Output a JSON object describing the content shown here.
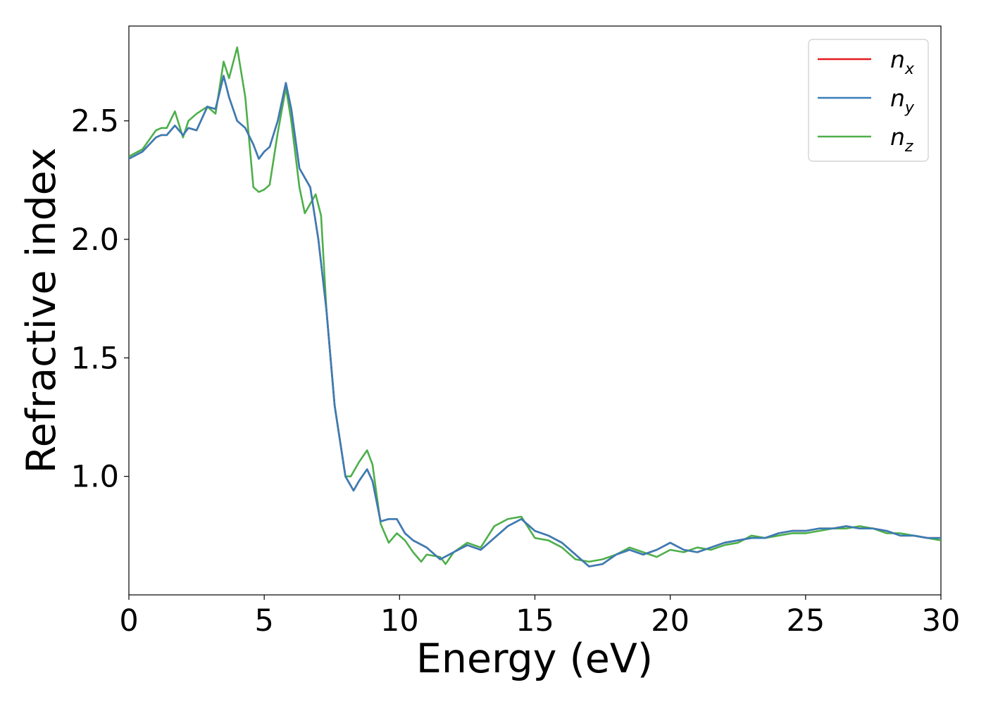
{
  "chart_data": {
    "type": "line",
    "xlabel": "Energy (eV)",
    "ylabel": "Refractive index",
    "xlim": [
      0,
      30
    ],
    "ylim": [
      0.5,
      2.9
    ],
    "xticks": [
      0,
      5,
      10,
      15,
      20,
      25,
      30
    ],
    "xtick_labels": [
      "0",
      "5",
      "10",
      "15",
      "20",
      "25",
      "30"
    ],
    "yticks": [
      1.0,
      1.5,
      2.0,
      2.5
    ],
    "ytick_labels": [
      "1.0",
      "1.5",
      "2.0",
      "2.5"
    ],
    "grid": false,
    "legend_position": "top-right",
    "series": [
      {
        "name": "n_x",
        "name_main": "n",
        "name_sub": "x",
        "color": "#e41a1c",
        "x": [
          0,
          0.5,
          1.0,
          1.2,
          1.4,
          1.7,
          2.0,
          2.2,
          2.5,
          2.9,
          3.2,
          3.5,
          3.7,
          4.0,
          4.3,
          4.6,
          4.8,
          5.0,
          5.2,
          5.5,
          5.8,
          6.0,
          6.3,
          6.7,
          7.0,
          7.3,
          7.6,
          8.0,
          8.3,
          8.5,
          8.8,
          9.0,
          9.3,
          9.6,
          9.9,
          10.2,
          10.5,
          11.0,
          11.5,
          12.0,
          12.5,
          13.0,
          13.5,
          14.0,
          14.5,
          15.0,
          15.5,
          16.0,
          16.5,
          17.0,
          17.5,
          18.0,
          18.5,
          19.0,
          19.5,
          20.0,
          20.5,
          21.0,
          21.5,
          22.0,
          22.5,
          23.0,
          23.5,
          24.0,
          24.5,
          25.0,
          25.5,
          26.0,
          26.5,
          27.0,
          27.5,
          28.0,
          28.5,
          29.0,
          29.5,
          30.0
        ],
        "y": [
          2.34,
          2.37,
          2.43,
          2.44,
          2.44,
          2.48,
          2.44,
          2.47,
          2.46,
          2.56,
          2.55,
          2.69,
          2.6,
          2.5,
          2.47,
          2.4,
          2.34,
          2.37,
          2.39,
          2.5,
          2.66,
          2.55,
          2.3,
          2.22,
          2.0,
          1.7,
          1.3,
          1.0,
          0.94,
          0.98,
          1.03,
          0.98,
          0.81,
          0.82,
          0.82,
          0.76,
          0.73,
          0.7,
          0.65,
          0.68,
          0.71,
          0.69,
          0.74,
          0.79,
          0.82,
          0.77,
          0.75,
          0.72,
          0.67,
          0.62,
          0.63,
          0.67,
          0.69,
          0.67,
          0.69,
          0.72,
          0.69,
          0.68,
          0.7,
          0.72,
          0.73,
          0.74,
          0.74,
          0.76,
          0.77,
          0.77,
          0.78,
          0.78,
          0.79,
          0.78,
          0.78,
          0.77,
          0.75,
          0.75,
          0.74,
          0.74
        ]
      },
      {
        "name": "n_y",
        "name_main": "n",
        "name_sub": "y",
        "color": "#377eb8",
        "x": [
          0,
          0.5,
          1.0,
          1.2,
          1.4,
          1.7,
          2.0,
          2.2,
          2.5,
          2.9,
          3.2,
          3.5,
          3.7,
          4.0,
          4.3,
          4.6,
          4.8,
          5.0,
          5.2,
          5.5,
          5.8,
          6.0,
          6.3,
          6.7,
          7.0,
          7.3,
          7.6,
          8.0,
          8.3,
          8.5,
          8.8,
          9.0,
          9.3,
          9.6,
          9.9,
          10.2,
          10.5,
          11.0,
          11.5,
          12.0,
          12.5,
          13.0,
          13.5,
          14.0,
          14.5,
          15.0,
          15.5,
          16.0,
          16.5,
          17.0,
          17.5,
          18.0,
          18.5,
          19.0,
          19.5,
          20.0,
          20.5,
          21.0,
          21.5,
          22.0,
          22.5,
          23.0,
          23.5,
          24.0,
          24.5,
          25.0,
          25.5,
          26.0,
          26.5,
          27.0,
          27.5,
          28.0,
          28.5,
          29.0,
          29.5,
          30.0
        ],
        "y": [
          2.34,
          2.37,
          2.43,
          2.44,
          2.44,
          2.48,
          2.44,
          2.47,
          2.46,
          2.56,
          2.55,
          2.69,
          2.6,
          2.5,
          2.47,
          2.4,
          2.34,
          2.37,
          2.39,
          2.5,
          2.66,
          2.55,
          2.3,
          2.22,
          2.0,
          1.7,
          1.3,
          1.0,
          0.94,
          0.98,
          1.03,
          0.98,
          0.81,
          0.82,
          0.82,
          0.76,
          0.73,
          0.7,
          0.65,
          0.68,
          0.71,
          0.69,
          0.74,
          0.79,
          0.82,
          0.77,
          0.75,
          0.72,
          0.67,
          0.62,
          0.63,
          0.67,
          0.69,
          0.67,
          0.69,
          0.72,
          0.69,
          0.68,
          0.7,
          0.72,
          0.73,
          0.74,
          0.74,
          0.76,
          0.77,
          0.77,
          0.78,
          0.78,
          0.79,
          0.78,
          0.78,
          0.77,
          0.75,
          0.75,
          0.74,
          0.74
        ]
      },
      {
        "name": "n_z",
        "name_main": "n",
        "name_sub": "z",
        "color": "#4daf4a",
        "x": [
          0,
          0.5,
          1.0,
          1.2,
          1.4,
          1.7,
          2.0,
          2.2,
          2.5,
          2.9,
          3.2,
          3.5,
          3.7,
          4.0,
          4.3,
          4.6,
          4.8,
          5.0,
          5.2,
          5.5,
          5.8,
          6.0,
          6.3,
          6.5,
          6.7,
          6.9,
          7.1,
          7.3,
          7.6,
          8.0,
          8.2,
          8.5,
          8.8,
          9.0,
          9.3,
          9.6,
          9.9,
          10.2,
          10.5,
          10.8,
          11.0,
          11.5,
          11.7,
          12.0,
          12.5,
          13.0,
          13.5,
          14.0,
          14.5,
          15.0,
          15.5,
          16.0,
          16.5,
          17.0,
          17.5,
          18.0,
          18.5,
          19.0,
          19.5,
          20.0,
          20.5,
          21.0,
          21.5,
          22.0,
          22.5,
          23.0,
          23.5,
          24.0,
          24.5,
          25.0,
          25.5,
          26.0,
          26.5,
          27.0,
          27.5,
          28.0,
          28.5,
          29.0,
          29.5,
          30.0
        ],
        "y": [
          2.35,
          2.38,
          2.46,
          2.47,
          2.47,
          2.54,
          2.43,
          2.5,
          2.53,
          2.56,
          2.53,
          2.75,
          2.68,
          2.81,
          2.6,
          2.22,
          2.2,
          2.21,
          2.23,
          2.45,
          2.64,
          2.5,
          2.22,
          2.11,
          2.15,
          2.19,
          2.1,
          1.7,
          1.3,
          1.0,
          1.0,
          1.06,
          1.11,
          1.05,
          0.8,
          0.72,
          0.76,
          0.73,
          0.68,
          0.64,
          0.67,
          0.66,
          0.63,
          0.68,
          0.72,
          0.7,
          0.79,
          0.82,
          0.83,
          0.74,
          0.73,
          0.7,
          0.65,
          0.64,
          0.65,
          0.67,
          0.7,
          0.68,
          0.66,
          0.69,
          0.68,
          0.7,
          0.69,
          0.71,
          0.72,
          0.75,
          0.74,
          0.75,
          0.76,
          0.76,
          0.77,
          0.78,
          0.78,
          0.79,
          0.78,
          0.76,
          0.76,
          0.75,
          0.74,
          0.73
        ]
      }
    ]
  }
}
